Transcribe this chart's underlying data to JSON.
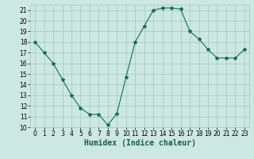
{
  "x": [
    0,
    1,
    2,
    3,
    4,
    5,
    6,
    7,
    8,
    9,
    10,
    11,
    12,
    13,
    14,
    15,
    16,
    17,
    18,
    19,
    20,
    21,
    22,
    23
  ],
  "y": [
    18,
    17,
    16,
    14.5,
    13,
    11.8,
    11.2,
    11.2,
    10.2,
    11.3,
    14.7,
    18,
    19.5,
    21,
    21.2,
    21.2,
    21.1,
    19,
    18.3,
    17.3,
    16.5,
    16.5,
    16.5,
    17.3
  ],
  "line_color": "#1a6b5a",
  "marker": "*",
  "marker_size": 3,
  "bg_color": "#cce8e0",
  "grid_color": "#9ec8be",
  "xlabel": "Humidex (Indice chaleur)",
  "xlim": [
    -0.5,
    23.5
  ],
  "ylim": [
    10,
    21.5
  ],
  "yticks": [
    10,
    11,
    12,
    13,
    14,
    15,
    16,
    17,
    18,
    19,
    20,
    21
  ],
  "xticks": [
    0,
    1,
    2,
    3,
    4,
    5,
    6,
    7,
    8,
    9,
    10,
    11,
    12,
    13,
    14,
    15,
    16,
    17,
    18,
    19,
    20,
    21,
    22,
    23
  ],
  "tick_fontsize": 5.5,
  "xlabel_fontsize": 7
}
